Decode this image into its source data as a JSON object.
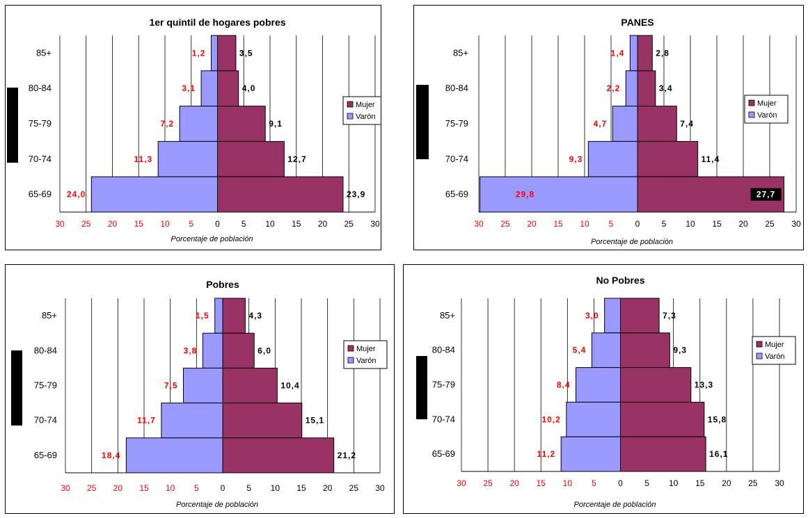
{
  "colors": {
    "mujer": "#993366",
    "varon": "#9999ff",
    "male_label": "#ff0000",
    "female_label": "#000000",
    "grid": "#000000"
  },
  "chart_data": [
    {
      "type": "bar",
      "title": "1er quintil de hogares pobres",
      "xlabel": "Porcentaje de población",
      "xlim": [
        -30,
        30
      ],
      "xticks": [
        "30",
        "25",
        "20",
        "15",
        "10",
        "5",
        "0",
        "5",
        "10",
        "15",
        "20",
        "25",
        "30"
      ],
      "categories": [
        "85+",
        "80-84",
        "75-79",
        "70-74",
        "65-69"
      ],
      "series": [
        {
          "name": "Mujer",
          "values": [
            3.5,
            4.0,
            9.1,
            12.7,
            23.9
          ],
          "labels": [
            "3,5",
            "4,0",
            "9,1",
            "12,7",
            "23,9"
          ]
        },
        {
          "name": "Varón",
          "values": [
            1.2,
            3.1,
            7.2,
            11.3,
            24.0
          ],
          "labels": [
            "1,2",
            "3,1",
            "7,2",
            "11,3",
            "24,0"
          ]
        }
      ],
      "legend": "right"
    },
    {
      "type": "bar",
      "title": "PANES",
      "xlabel": "Porcentaje de población",
      "xlim": [
        -30,
        30
      ],
      "xticks": [
        "30",
        "25",
        "20",
        "15",
        "10",
        "5",
        "0",
        "5",
        "10",
        "15",
        "20",
        "25",
        "30"
      ],
      "categories": [
        "85+",
        "80-84",
        "75-79",
        "70-74",
        "65-69"
      ],
      "series": [
        {
          "name": "Mujer",
          "values": [
            2.8,
            3.4,
            7.4,
            11.4,
            27.7
          ],
          "labels": [
            "2,8",
            "3,4",
            "7,4",
            "11,4",
            "27,7"
          ]
        },
        {
          "name": "Varón",
          "values": [
            1.4,
            2.2,
            4.7,
            9.3,
            29.8
          ],
          "labels": [
            "1,4",
            "2,2",
            "4,7",
            "9,3",
            "29,8"
          ]
        }
      ],
      "legend": "right"
    },
    {
      "type": "bar",
      "title": "Pobres",
      "xlabel": "Porcentaje de población",
      "xlim": [
        -30,
        30
      ],
      "xticks": [
        "30",
        "25",
        "20",
        "15",
        "10",
        "5",
        "0",
        "5",
        "10",
        "15",
        "20",
        "25",
        "30"
      ],
      "categories": [
        "85+",
        "80-84",
        "75-79",
        "70-74",
        "65-69"
      ],
      "series": [
        {
          "name": "Mujer",
          "values": [
            4.3,
            6.0,
            10.4,
            15.1,
            21.2
          ],
          "labels": [
            "4,3",
            "6,0",
            "10,4",
            "15,1",
            "21,2"
          ]
        },
        {
          "name": "Varón",
          "values": [
            1.5,
            3.8,
            7.5,
            11.7,
            18.4
          ],
          "labels": [
            "1,5",
            "3,8",
            "7,5",
            "11,7",
            "18,4"
          ]
        }
      ],
      "legend": "right"
    },
    {
      "type": "bar",
      "title": "No Pobres",
      "xlabel": "Porcentaje de población",
      "xlim": [
        -30,
        30
      ],
      "xticks": [
        "30",
        "25",
        "20",
        "15",
        "10",
        "5",
        "0",
        "5",
        "10",
        "15",
        "20",
        "25",
        "30"
      ],
      "categories": [
        "85+",
        "80-84",
        "75-79",
        "70-74",
        "65-69"
      ],
      "series": [
        {
          "name": "Mujer",
          "values": [
            7.3,
            9.3,
            13.3,
            15.8,
            16.1
          ],
          "labels": [
            "7,3",
            "9,3",
            "13,3",
            "15,8",
            "16,1"
          ]
        },
        {
          "name": "Varón",
          "values": [
            3.0,
            5.4,
            8.4,
            10.2,
            11.2
          ],
          "labels": [
            "3,0",
            "5,4",
            "8,4",
            "10,2",
            "11,2"
          ]
        }
      ],
      "legend": "right"
    }
  ]
}
